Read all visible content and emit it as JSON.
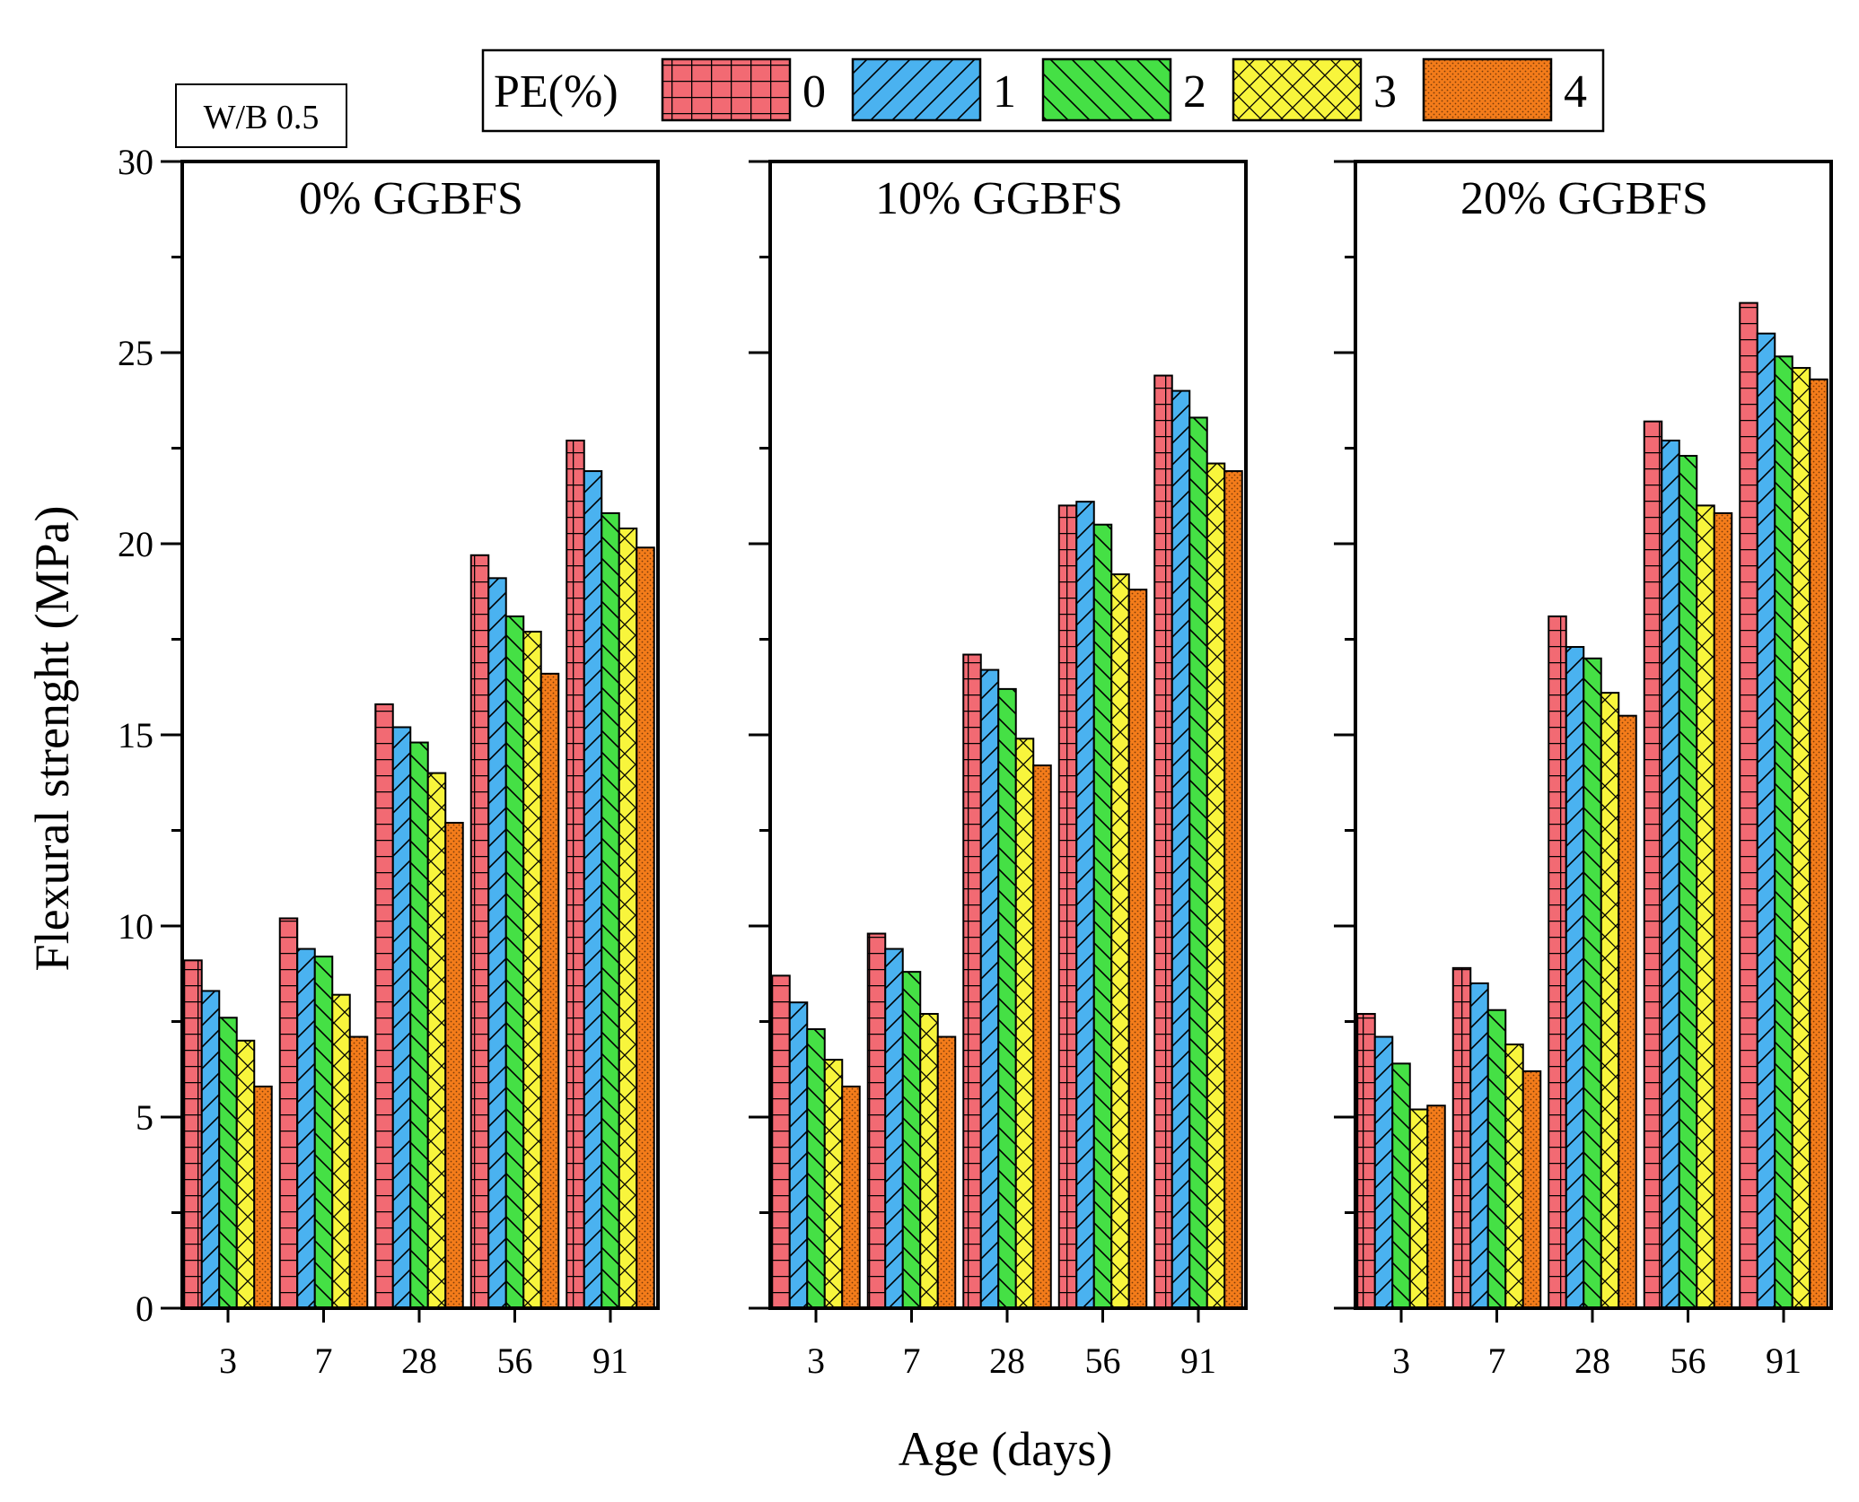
{
  "chart_data": {
    "type": "bar",
    "ylabel": "Flexural strenght (MPa)",
    "xlabel": "Age (days)",
    "ylim": [
      0,
      30
    ],
    "yticks": [
      0,
      5,
      10,
      15,
      20,
      25,
      30
    ],
    "annotation": "W/B 0.5",
    "legend": {
      "title": "PE(%)",
      "entries": [
        "0",
        "1",
        "2",
        "3",
        "4"
      ],
      "position": "top"
    },
    "series_colors": [
      "#f26a73",
      "#4ab2f0",
      "#45e045",
      "#f8f53c",
      "#f47c1a"
    ],
    "series_patterns": [
      "grid",
      "diag-up",
      "diag-down",
      "crosshatch",
      "dots"
    ],
    "categories": [
      "3",
      "7",
      "28",
      "56",
      "91"
    ],
    "panels": [
      {
        "title": "0% GGBFS",
        "series": [
          {
            "name": "0",
            "values": [
              9.1,
              10.2,
              15.8,
              19.7,
              22.7
            ]
          },
          {
            "name": "1",
            "values": [
              8.3,
              9.4,
              15.2,
              19.1,
              21.9
            ]
          },
          {
            "name": "2",
            "values": [
              7.6,
              9.2,
              14.8,
              18.1,
              20.8
            ]
          },
          {
            "name": "3",
            "values": [
              7.0,
              8.2,
              14.0,
              17.7,
              20.4
            ]
          },
          {
            "name": "4",
            "values": [
              5.8,
              7.1,
              12.7,
              16.6,
              19.9
            ]
          }
        ]
      },
      {
        "title": "10% GGBFS",
        "series": [
          {
            "name": "0",
            "values": [
              8.7,
              9.8,
              17.1,
              21.0,
              24.4
            ]
          },
          {
            "name": "1",
            "values": [
              8.0,
              9.4,
              16.7,
              21.1,
              24.0
            ]
          },
          {
            "name": "2",
            "values": [
              7.3,
              8.8,
              16.2,
              20.5,
              23.3
            ]
          },
          {
            "name": "3",
            "values": [
              6.5,
              7.7,
              14.9,
              19.2,
              22.1
            ]
          },
          {
            "name": "4",
            "values": [
              5.8,
              7.1,
              14.2,
              18.8,
              21.9
            ]
          }
        ]
      },
      {
        "title": "20% GGBFS",
        "series": [
          {
            "name": "0",
            "values": [
              7.7,
              8.9,
              18.1,
              23.2,
              26.3
            ]
          },
          {
            "name": "1",
            "values": [
              7.1,
              8.5,
              17.3,
              22.7,
              25.5
            ]
          },
          {
            "name": "2",
            "values": [
              6.4,
              7.8,
              17.0,
              22.3,
              24.9
            ]
          },
          {
            "name": "3",
            "values": [
              5.2,
              6.9,
              16.1,
              21.0,
              24.6
            ]
          },
          {
            "name": "4",
            "values": [
              5.3,
              6.2,
              15.5,
              20.8,
              24.3
            ]
          }
        ]
      }
    ]
  }
}
